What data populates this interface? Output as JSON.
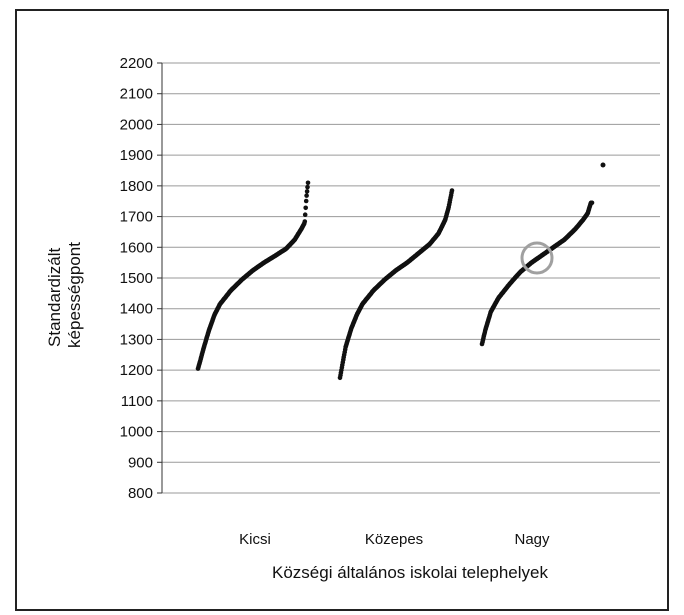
{
  "chart_data": {
    "type": "scatter",
    "xlabel": "Községi általános iskolai telephelyek",
    "ylabel_lines": [
      "Standardizált",
      "képességpont"
    ],
    "ylim": [
      800,
      2200
    ],
    "yticks": [
      800,
      900,
      1000,
      1100,
      1200,
      1300,
      1400,
      1500,
      1600,
      1700,
      1800,
      1900,
      2000,
      2100,
      2200
    ],
    "grid": true,
    "categories": [
      "Kicsi",
      "Közepes",
      "Nagy"
    ],
    "series": [
      {
        "category": "Kicsi",
        "shape": [
          [
            0,
            1205
          ],
          [
            0.02,
            1230
          ],
          [
            0.05,
            1270
          ],
          [
            0.1,
            1330
          ],
          [
            0.15,
            1380
          ],
          [
            0.2,
            1415
          ],
          [
            0.3,
            1460
          ],
          [
            0.4,
            1495
          ],
          [
            0.5,
            1525
          ],
          [
            0.6,
            1550
          ],
          [
            0.7,
            1572
          ],
          [
            0.8,
            1595
          ],
          [
            0.88,
            1625
          ],
          [
            0.94,
            1660
          ],
          [
            0.97,
            1680
          ],
          [
            0.985,
            1760
          ],
          [
            1,
            1810
          ]
        ]
      },
      {
        "category": "Közepes",
        "shape": [
          [
            0,
            1175
          ],
          [
            0.02,
            1215
          ],
          [
            0.05,
            1275
          ],
          [
            0.1,
            1335
          ],
          [
            0.15,
            1380
          ],
          [
            0.2,
            1415
          ],
          [
            0.3,
            1460
          ],
          [
            0.4,
            1495
          ],
          [
            0.5,
            1525
          ],
          [
            0.6,
            1550
          ],
          [
            0.7,
            1580
          ],
          [
            0.8,
            1610
          ],
          [
            0.88,
            1645
          ],
          [
            0.94,
            1690
          ],
          [
            0.97,
            1730
          ],
          [
            1,
            1785
          ]
        ]
      },
      {
        "category": "Nagy",
        "shape": [
          [
            0,
            1285
          ],
          [
            0.03,
            1330
          ],
          [
            0.08,
            1390
          ],
          [
            0.15,
            1435
          ],
          [
            0.25,
            1480
          ],
          [
            0.35,
            1520
          ],
          [
            0.45,
            1550
          ],
          [
            0.55,
            1575
          ],
          [
            0.65,
            1600
          ],
          [
            0.75,
            1625
          ],
          [
            0.85,
            1660
          ],
          [
            0.92,
            1690
          ],
          [
            0.96,
            1710
          ],
          [
            0.99,
            1745
          ]
        ],
        "outlier": {
          "position": 1.1,
          "value": 1868
        },
        "highlight": {
          "position": 0.5,
          "value": 1565
        }
      }
    ],
    "highlight_color": "#a0a0a0",
    "point_color": "#111111"
  }
}
